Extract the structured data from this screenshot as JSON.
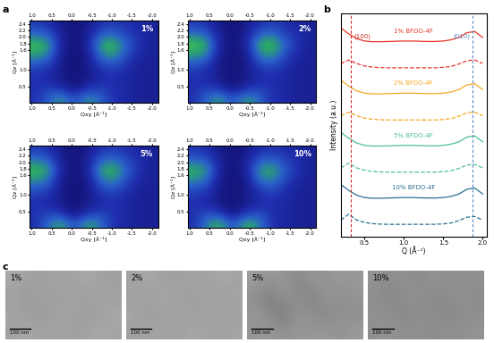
{
  "panel_labels": [
    "a",
    "b",
    "c"
  ],
  "chart_data": [
    {
      "type": "heatmap",
      "title": "1%",
      "x_label": "Qxy [Å⁻¹]",
      "y_label": "Qz [Å⁻¹]",
      "xlim": [
        1.05,
        -2.15
      ],
      "ylim": [
        0,
        2.5
      ],
      "xticks": [
        1.0,
        0.5,
        0.0,
        -0.5,
        -1.0,
        -1.5,
        -2.0
      ],
      "yticks": [
        0.5,
        1.0,
        1.6,
        1.8,
        2.0,
        2.2,
        2.4
      ],
      "vlim": [
        0,
        1
      ],
      "cells": [
        [
          0.25,
          0.2,
          0.05,
          0.0,
          0.05,
          0.2,
          0.25,
          0.2,
          0.15,
          0.1
        ],
        [
          0.45,
          0.4,
          0.1,
          0.0,
          0.1,
          0.4,
          0.45,
          0.3,
          0.2,
          0.1
        ],
        [
          0.7,
          0.6,
          0.1,
          0.0,
          0.1,
          0.6,
          0.7,
          0.4,
          0.2,
          0.1
        ],
        [
          0.55,
          0.45,
          0.05,
          0.0,
          0.05,
          0.45,
          0.55,
          0.3,
          0.15,
          0.1
        ],
        [
          0.3,
          0.25,
          0.05,
          0.0,
          0.05,
          0.25,
          0.3,
          0.2,
          0.1,
          0.1
        ],
        [
          0.2,
          0.15,
          0.05,
          0.0,
          0.05,
          0.15,
          0.2,
          0.15,
          0.1,
          0.1
        ],
        [
          0.2,
          0.25,
          0.15,
          0.0,
          0.15,
          0.25,
          0.2,
          0.15,
          0.1,
          0.1
        ],
        [
          0.2,
          0.4,
          0.55,
          0.3,
          0.55,
          0.4,
          0.2,
          0.15,
          0.1,
          0.1
        ]
      ]
    },
    {
      "type": "heatmap",
      "title": "2%",
      "x_label": "Qxy [Å⁻¹]",
      "y_label": "Qz [Å⁻¹]",
      "xlim": [
        1.05,
        -2.15
      ],
      "ylim": [
        0,
        2.5
      ],
      "xticks": [
        1.0,
        0.5,
        0.0,
        -0.5,
        -1.0,
        -1.5,
        -2.0
      ],
      "yticks": [
        0.5,
        1.0,
        1.6,
        1.8,
        2.0,
        2.2,
        2.4
      ],
      "vlim": [
        0,
        1
      ],
      "cells": [
        [
          0.25,
          0.2,
          0.05,
          0.0,
          0.05,
          0.2,
          0.25,
          0.2,
          0.15,
          0.1
        ],
        [
          0.5,
          0.42,
          0.1,
          0.0,
          0.1,
          0.42,
          0.5,
          0.3,
          0.2,
          0.1
        ],
        [
          0.72,
          0.62,
          0.1,
          0.0,
          0.1,
          0.62,
          0.72,
          0.42,
          0.2,
          0.1
        ],
        [
          0.55,
          0.45,
          0.05,
          0.0,
          0.05,
          0.45,
          0.55,
          0.3,
          0.15,
          0.1
        ],
        [
          0.3,
          0.25,
          0.05,
          0.0,
          0.05,
          0.25,
          0.3,
          0.2,
          0.1,
          0.1
        ],
        [
          0.2,
          0.15,
          0.05,
          0.0,
          0.05,
          0.15,
          0.2,
          0.15,
          0.1,
          0.1
        ],
        [
          0.2,
          0.25,
          0.15,
          0.0,
          0.15,
          0.25,
          0.2,
          0.15,
          0.1,
          0.1
        ],
        [
          0.2,
          0.42,
          0.58,
          0.3,
          0.58,
          0.42,
          0.2,
          0.15,
          0.1,
          0.1
        ]
      ]
    },
    {
      "type": "heatmap",
      "title": "5%",
      "x_label": "Qxy [Å⁻¹]",
      "y_label": "Qz [Å⁻¹]",
      "xlim": [
        1.05,
        -2.15
      ],
      "ylim": [
        0,
        2.5
      ],
      "xticks": [
        1.0,
        0.5,
        0.0,
        -0.5,
        -1.0,
        -1.5,
        -2.0
      ],
      "yticks": [
        0.5,
        1.0,
        1.6,
        1.8,
        2.0,
        2.2,
        2.4
      ],
      "vlim": [
        0,
        1
      ],
      "cells": [
        [
          0.25,
          0.2,
          0.05,
          0.0,
          0.05,
          0.2,
          0.25,
          0.2,
          0.15,
          0.1
        ],
        [
          0.48,
          0.4,
          0.1,
          0.0,
          0.1,
          0.4,
          0.48,
          0.3,
          0.2,
          0.1
        ],
        [
          0.68,
          0.58,
          0.1,
          0.0,
          0.1,
          0.58,
          0.68,
          0.4,
          0.2,
          0.1
        ],
        [
          0.52,
          0.42,
          0.05,
          0.0,
          0.05,
          0.42,
          0.52,
          0.3,
          0.15,
          0.1
        ],
        [
          0.3,
          0.25,
          0.05,
          0.0,
          0.05,
          0.25,
          0.3,
          0.2,
          0.1,
          0.1
        ],
        [
          0.2,
          0.15,
          0.05,
          0.0,
          0.05,
          0.15,
          0.2,
          0.15,
          0.1,
          0.1
        ],
        [
          0.2,
          0.28,
          0.18,
          0.0,
          0.18,
          0.28,
          0.2,
          0.15,
          0.1,
          0.1
        ],
        [
          0.2,
          0.45,
          0.6,
          0.3,
          0.6,
          0.45,
          0.2,
          0.15,
          0.1,
          0.1
        ]
      ]
    },
    {
      "type": "heatmap",
      "title": "10%",
      "x_label": "Qxy [Å⁻¹]",
      "y_label": "Qz [Å⁻¹]",
      "xlim": [
        1.05,
        -2.15
      ],
      "ylim": [
        0,
        2.5
      ],
      "xticks": [
        1.0,
        0.5,
        0.0,
        -0.5,
        -1.0,
        -1.5,
        -2.0
      ],
      "yticks": [
        0.5,
        1.0,
        1.6,
        1.8,
        2.0,
        2.2,
        2.4
      ],
      "vlim": [
        0,
        1
      ],
      "cells": [
        [
          0.22,
          0.18,
          0.05,
          0.0,
          0.05,
          0.18,
          0.22,
          0.18,
          0.15,
          0.1
        ],
        [
          0.42,
          0.36,
          0.1,
          0.0,
          0.1,
          0.36,
          0.42,
          0.28,
          0.2,
          0.1
        ],
        [
          0.65,
          0.55,
          0.1,
          0.0,
          0.1,
          0.55,
          0.65,
          0.38,
          0.2,
          0.1
        ],
        [
          0.5,
          0.4,
          0.05,
          0.0,
          0.05,
          0.4,
          0.5,
          0.28,
          0.15,
          0.1
        ],
        [
          0.28,
          0.22,
          0.05,
          0.0,
          0.05,
          0.22,
          0.28,
          0.2,
          0.1,
          0.1
        ],
        [
          0.2,
          0.15,
          0.05,
          0.0,
          0.05,
          0.15,
          0.2,
          0.15,
          0.1,
          0.1
        ],
        [
          0.2,
          0.3,
          0.2,
          0.0,
          0.2,
          0.3,
          0.2,
          0.15,
          0.1,
          0.1
        ],
        [
          0.2,
          0.5,
          0.65,
          0.3,
          0.65,
          0.5,
          0.2,
          0.15,
          0.1,
          0.1
        ]
      ]
    },
    {
      "type": "line",
      "x_label": "Q (Å⁻¹)",
      "y_label": "Intensity (a.u.)",
      "xlim": [
        0.2,
        2.05
      ],
      "ylim": [
        0.6,
        10
      ],
      "xticks": [
        0.5,
        1.0,
        1.5,
        2.0
      ],
      "tick_labels": "x",
      "x": [
        0.2,
        0.3,
        0.4,
        0.5,
        0.6,
        0.7,
        0.8,
        0.9,
        1.0,
        1.1,
        1.2,
        1.3,
        1.4,
        1.5,
        1.6,
        1.7,
        1.8,
        1.9,
        2.0
      ],
      "series": [
        {
          "name": "1% BFDO-4F",
          "color": "#e8352b",
          "line_style": "solid",
          "values": [
            9.4,
            9.15,
            8.95,
            8.85,
            8.82,
            8.82,
            8.83,
            8.84,
            8.85,
            8.85,
            8.84,
            8.83,
            8.83,
            8.85,
            8.9,
            9.0,
            9.2,
            9.25,
            9.0
          ]
        },
        {
          "color": "#e8352b",
          "line_style": "dashed",
          "values": [
            7.9,
            8.05,
            7.9,
            7.8,
            7.75,
            7.73,
            7.72,
            7.72,
            7.72,
            7.72,
            7.72,
            7.72,
            7.72,
            7.74,
            7.78,
            7.88,
            8.02,
            8.05,
            7.9
          ]
        },
        {
          "name": "2% BFDO-4F",
          "color": "#f5a623",
          "line_style": "solid",
          "values": [
            7.2,
            6.95,
            6.75,
            6.65,
            6.62,
            6.62,
            6.63,
            6.64,
            6.65,
            6.65,
            6.64,
            6.63,
            6.63,
            6.65,
            6.7,
            6.8,
            7.0,
            7.05,
            6.8
          ]
        },
        {
          "color": "#f5a623",
          "line_style": "dashed",
          "values": [
            5.7,
            5.85,
            5.7,
            5.6,
            5.55,
            5.53,
            5.52,
            5.52,
            5.52,
            5.52,
            5.52,
            5.52,
            5.52,
            5.54,
            5.58,
            5.68,
            5.82,
            5.85,
            5.7
          ]
        },
        {
          "name": "5% BFDO-4F",
          "color": "#4dbf9c",
          "line_style": "solid",
          "values": [
            5.0,
            4.75,
            4.55,
            4.45,
            4.42,
            4.42,
            4.43,
            4.44,
            4.45,
            4.45,
            4.44,
            4.43,
            4.43,
            4.45,
            4.5,
            4.6,
            4.8,
            4.85,
            4.6
          ]
        },
        {
          "color": "#4dbf9c",
          "line_style": "dashed",
          "values": [
            3.5,
            3.7,
            3.5,
            3.4,
            3.35,
            3.33,
            3.32,
            3.32,
            3.32,
            3.32,
            3.32,
            3.32,
            3.32,
            3.34,
            3.38,
            3.48,
            3.62,
            3.65,
            3.5
          ]
        },
        {
          "name": "10% BFDO-4F",
          "color": "#2a6f8f",
          "line_style": "solid",
          "values": [
            2.8,
            2.55,
            2.35,
            2.25,
            2.22,
            2.22,
            2.23,
            2.24,
            2.25,
            2.25,
            2.24,
            2.23,
            2.23,
            2.25,
            2.3,
            2.4,
            2.6,
            2.65,
            2.4
          ]
        },
        {
          "color": "#2a6f8f",
          "line_style": "dashed",
          "values": [
            1.3,
            1.55,
            1.3,
            1.2,
            1.15,
            1.13,
            1.12,
            1.12,
            1.12,
            1.12,
            1.12,
            1.12,
            1.12,
            1.14,
            1.18,
            1.28,
            1.42,
            1.45,
            1.3
          ]
        }
      ],
      "vlines": [
        {
          "x": 0.33,
          "label": "(100)",
          "color": "#cc2a2a"
        },
        {
          "x": 1.87,
          "label": "(010)",
          "color": "#5b86c0"
        }
      ]
    },
    {
      "type": "image",
      "title": "1%",
      "scale_bar": "100 nm",
      "tick_labels": false,
      "vlim": [
        0,
        1
      ],
      "cells": [
        [
          0.66,
          0.64,
          0.62,
          0.65,
          0.63,
          0.66,
          0.64,
          0.62
        ],
        [
          0.63,
          0.6,
          0.64,
          0.61,
          0.66,
          0.62,
          0.65,
          0.63
        ],
        [
          0.65,
          0.62,
          0.6,
          0.63,
          0.64,
          0.61,
          0.63,
          0.66
        ],
        [
          0.64,
          0.66,
          0.63,
          0.65,
          0.62,
          0.64,
          0.66,
          0.64
        ]
      ]
    },
    {
      "type": "image",
      "title": "2%",
      "scale_bar": "100 nm",
      "tick_labels": false,
      "vlim": [
        0,
        1
      ],
      "cells": [
        [
          0.64,
          0.66,
          0.63,
          0.62,
          0.65,
          0.63,
          0.66,
          0.64
        ],
        [
          0.62,
          0.63,
          0.66,
          0.64,
          0.61,
          0.65,
          0.62,
          0.65
        ],
        [
          0.66,
          0.61,
          0.63,
          0.65,
          0.63,
          0.62,
          0.64,
          0.63
        ],
        [
          0.63,
          0.65,
          0.64,
          0.62,
          0.66,
          0.64,
          0.63,
          0.65
        ]
      ]
    },
    {
      "type": "image",
      "title": "5%",
      "scale_bar": "100 nm",
      "tick_labels": false,
      "vlim": [
        0,
        1
      ],
      "cells": [
        [
          0.62,
          0.58,
          0.6,
          0.52,
          0.6,
          0.57,
          0.61,
          0.59
        ],
        [
          0.56,
          0.48,
          0.58,
          0.55,
          0.5,
          0.6,
          0.54,
          0.6
        ],
        [
          0.6,
          0.55,
          0.47,
          0.58,
          0.56,
          0.52,
          0.58,
          0.55
        ],
        [
          0.58,
          0.6,
          0.56,
          0.6,
          0.58,
          0.6,
          0.57,
          0.61
        ]
      ]
    },
    {
      "type": "image",
      "title": "10%",
      "scale_bar": "100 nm",
      "tick_labels": false,
      "vlim": [
        0,
        1
      ],
      "cells": [
        [
          0.58,
          0.55,
          0.57,
          0.54,
          0.58,
          0.56,
          0.55,
          0.57
        ],
        [
          0.55,
          0.52,
          0.56,
          0.57,
          0.53,
          0.55,
          0.58,
          0.54
        ],
        [
          0.57,
          0.56,
          0.53,
          0.55,
          0.56,
          0.52,
          0.55,
          0.56
        ],
        [
          0.56,
          0.58,
          0.55,
          0.57,
          0.54,
          0.57,
          0.56,
          0.58
        ]
      ]
    }
  ]
}
